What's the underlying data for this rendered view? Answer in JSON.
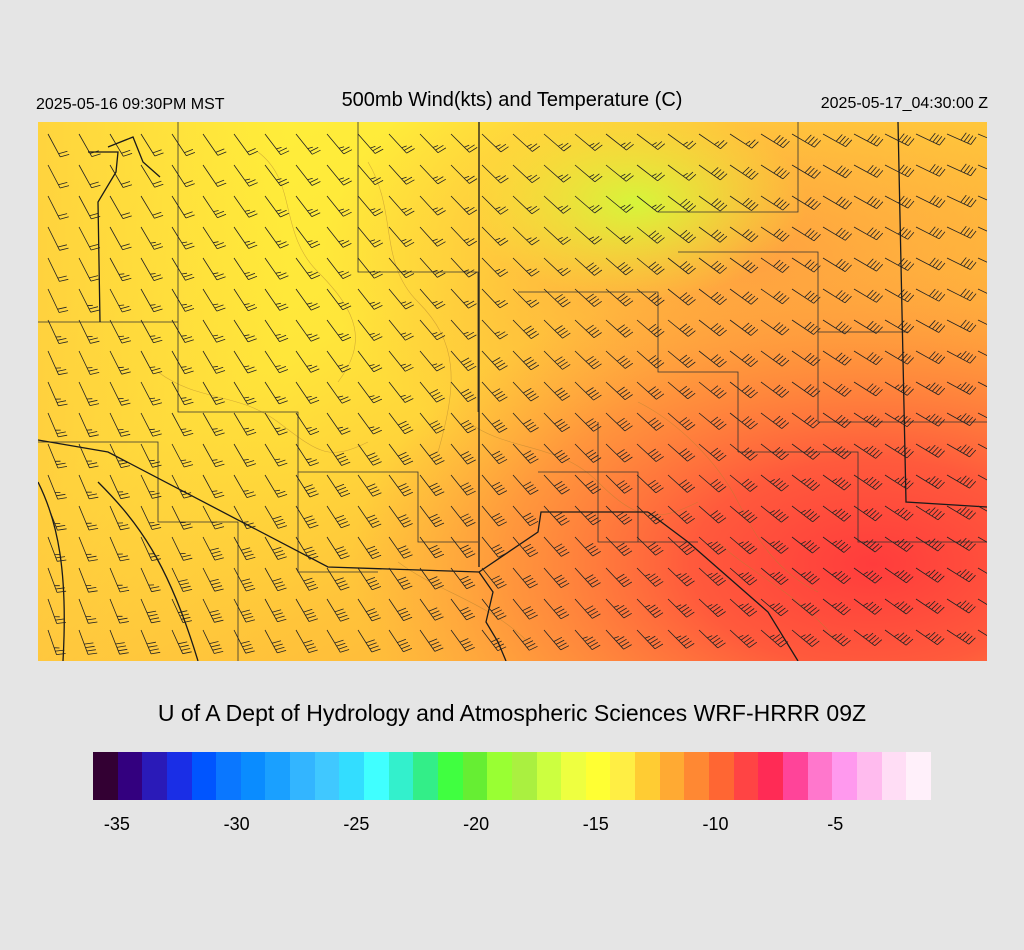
{
  "header": {
    "local_time": "2025-05-16 09:30PM MST",
    "title": "500mb Wind(kts) and Temperature (C)",
    "utc_time": "2025-05-17_04:30:00 Z"
  },
  "credit": "U of A Dept of Hydrology and Atmospheric Sciences WRF-HRRR 09Z",
  "colorbar": {
    "min": -36,
    "max": -1,
    "colors": [
      "#330033",
      "#33007f",
      "#2a1ab8",
      "#1a2ee6",
      "#0055ff",
      "#0a77ff",
      "#0a8cff",
      "#1aa0ff",
      "#33b5ff",
      "#40c8ff",
      "#33ddff",
      "#40ffff",
      "#33f0cc",
      "#33ee88",
      "#40ff40",
      "#66ee33",
      "#99ff33",
      "#aaf040",
      "#ccff40",
      "#eeff40",
      "#ffff33",
      "#ffee44",
      "#ffcc33",
      "#ffaa33",
      "#ff8833",
      "#ff6633",
      "#ff4444",
      "#ff2b55",
      "#ff4499",
      "#ff77cc",
      "#ff99ee",
      "#ffbbee",
      "#ffddf5",
      "#fff0fa"
    ],
    "ticks": [
      "-35",
      "-30",
      "-25",
      "-20",
      "-15",
      "-10",
      "-5"
    ],
    "tick_values": [
      -35,
      -30,
      -25,
      -20,
      -15,
      -10,
      -5
    ]
  }
}
